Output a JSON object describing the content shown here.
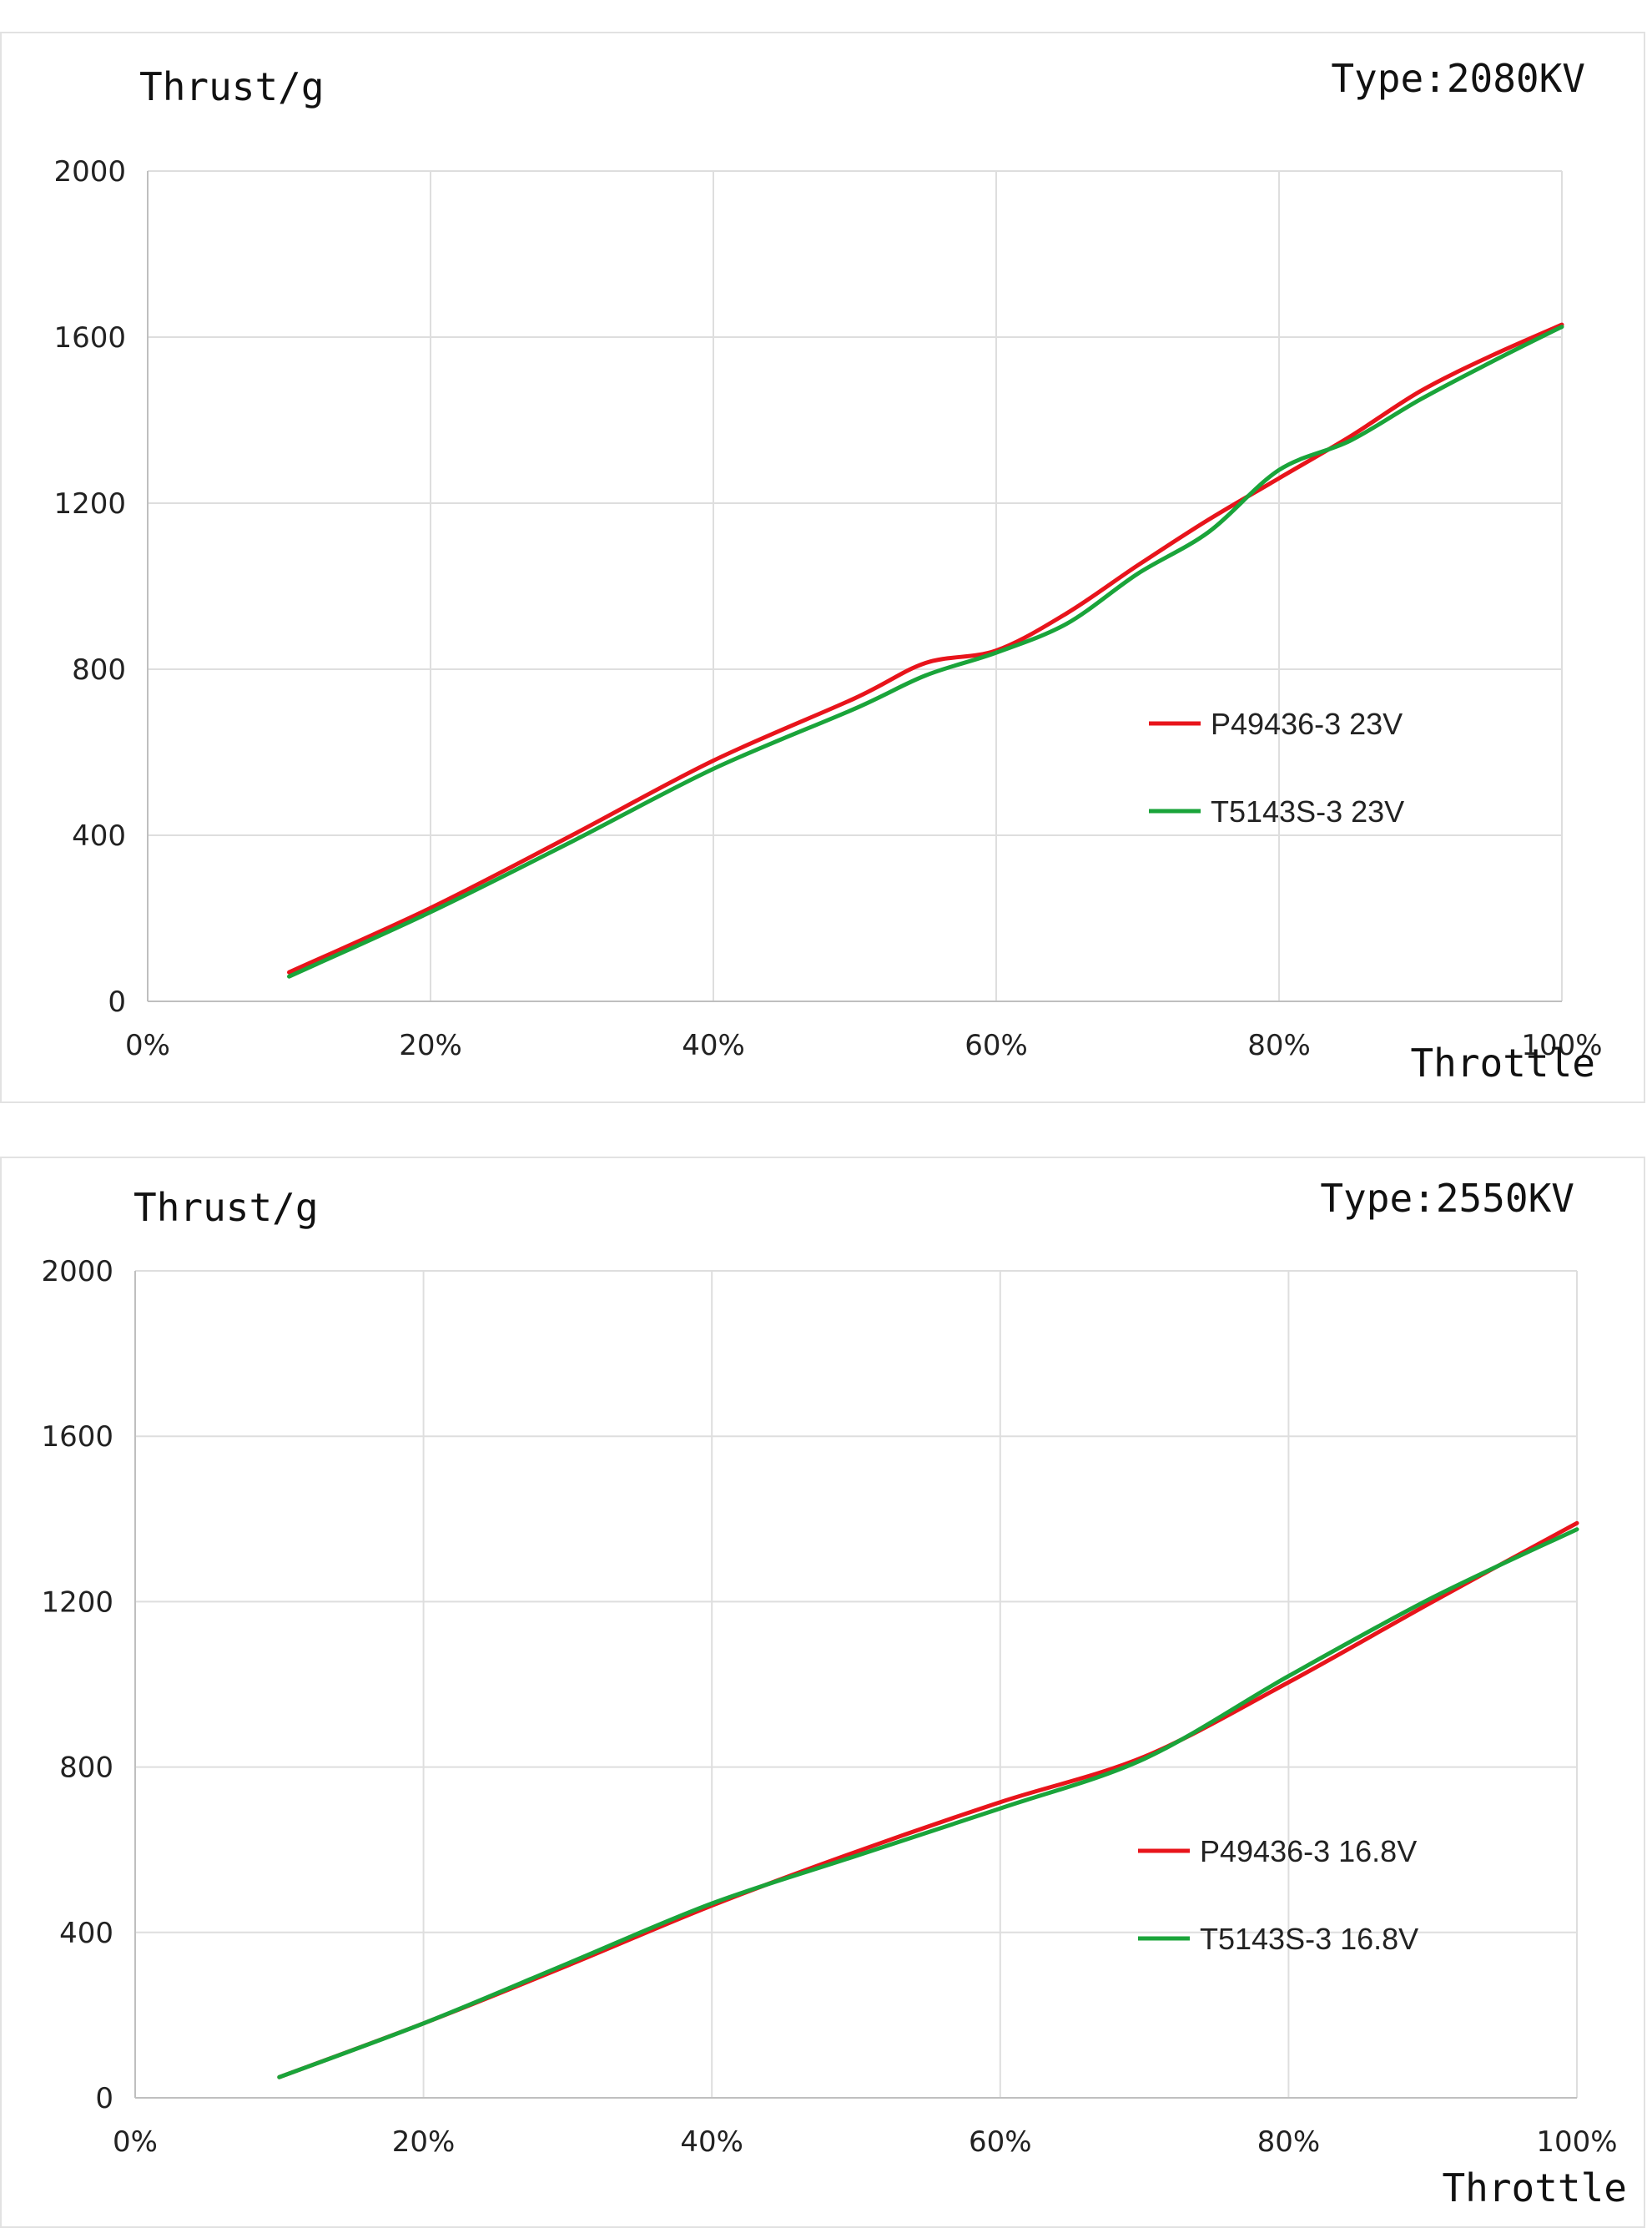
{
  "chart_data": [
    {
      "type": "line",
      "title": "Type:2080KV",
      "xlabel": "Throttle",
      "ylabel": "Thrust/g",
      "xlim": [
        0,
        100
      ],
      "ylim": [
        0,
        2000
      ],
      "x_ticks": [
        "0%",
        "20%",
        "40%",
        "60%",
        "80%",
        "100%"
      ],
      "y_ticks": [
        "0",
        "400",
        "800",
        "1200",
        "1600",
        "2000"
      ],
      "grid": true,
      "legend_position": "right",
      "x": [
        10,
        20,
        30,
        40,
        50,
        55,
        60,
        65,
        70,
        75,
        80,
        85,
        90,
        95,
        100
      ],
      "series": [
        {
          "name": "P49436-3 23V",
          "color": "#e8141b",
          "values": [
            70,
            225,
            400,
            580,
            730,
            815,
            845,
            935,
            1050,
            1160,
            1260,
            1360,
            1470,
            1555,
            1630
          ]
        },
        {
          "name": "T5143S-3 23V",
          "color": "#1aa43a",
          "values": [
            60,
            215,
            385,
            560,
            705,
            785,
            840,
            910,
            1030,
            1130,
            1280,
            1350,
            1450,
            1540,
            1625
          ]
        }
      ]
    },
    {
      "type": "line",
      "title": "Type:2550KV",
      "xlabel": "Throttle",
      "ylabel": "Thrust/g",
      "xlim": [
        0,
        100
      ],
      "ylim": [
        0,
        2000
      ],
      "x_ticks": [
        "0%",
        "20%",
        "40%",
        "60%",
        "80%",
        "100%"
      ],
      "y_ticks": [
        "0",
        "400",
        "800",
        "1200",
        "1600",
        "2000"
      ],
      "grid": true,
      "legend_position": "right",
      "x": [
        10,
        20,
        30,
        40,
        50,
        60,
        70,
        80,
        90,
        100
      ],
      "series": [
        {
          "name": "P49436-3 16.8V",
          "color": "#e8141b",
          "values": [
            50,
            180,
            320,
            465,
            595,
            715,
            825,
            1005,
            1200,
            1390
          ]
        },
        {
          "name": "T5143S-3 16.8V",
          "color": "#1aa43a",
          "values": [
            50,
            180,
            325,
            470,
            585,
            700,
            820,
            1020,
            1210,
            1375
          ]
        }
      ]
    }
  ]
}
